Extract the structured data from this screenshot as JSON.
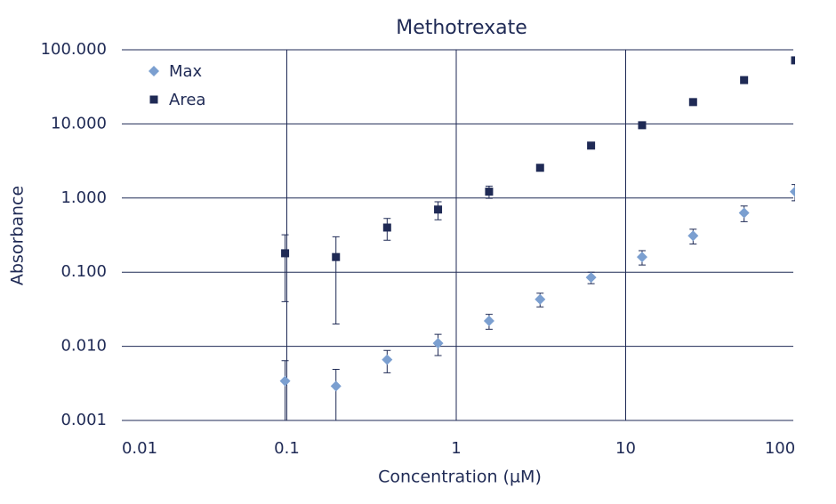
{
  "chart_data": {
    "type": "scatter",
    "title": "Methotrexate",
    "x_label": "Concentration (µM)",
    "y_label": "Absorbance",
    "x_scale": "log",
    "y_scale": "log",
    "grid": true,
    "legend": "upper left",
    "x": [
      0.0977,
      0.195,
      0.391,
      0.781,
      1.5625,
      3.125,
      6.25,
      12.5,
      25,
      50,
      100
    ],
    "series": [
      {
        "name": "Max",
        "color": "#7b9fd0",
        "marker": "diamond",
        "values": [
          0.0034,
          0.0029,
          0.0066,
          0.011,
          0.022,
          0.043,
          0.085,
          0.16,
          0.31,
          0.63,
          1.22
        ],
        "errors": [
          0.003,
          0.002,
          0.0022,
          0.0035,
          0.005,
          0.009,
          0.015,
          0.035,
          0.07,
          0.15,
          0.3
        ]
      },
      {
        "name": "Area",
        "color": "#1f2a55",
        "marker": "square",
        "values": [
          0.18,
          0.16,
          0.4,
          0.7,
          1.22,
          2.56,
          5.1,
          9.6,
          19.7,
          39,
          72
        ],
        "errors": [
          0.14,
          0.14,
          0.13,
          0.19,
          0.23,
          null,
          null,
          null,
          null,
          null,
          null
        ]
      }
    ],
    "xlim": [
      0.01,
      100
    ],
    "xticks": [
      0.01,
      0.1,
      1,
      10,
      100
    ],
    "ylim": [
      0.001,
      100
    ],
    "yticks": [
      {
        "value": 0.001,
        "label": "0.001"
      },
      {
        "value": 0.01,
        "label": "0.010"
      },
      {
        "value": 0.1,
        "label": "0.100"
      },
      {
        "value": 1,
        "label": "1.000"
      },
      {
        "value": 10,
        "label": "10.000"
      },
      {
        "value": 100,
        "label": "100.000"
      }
    ]
  }
}
